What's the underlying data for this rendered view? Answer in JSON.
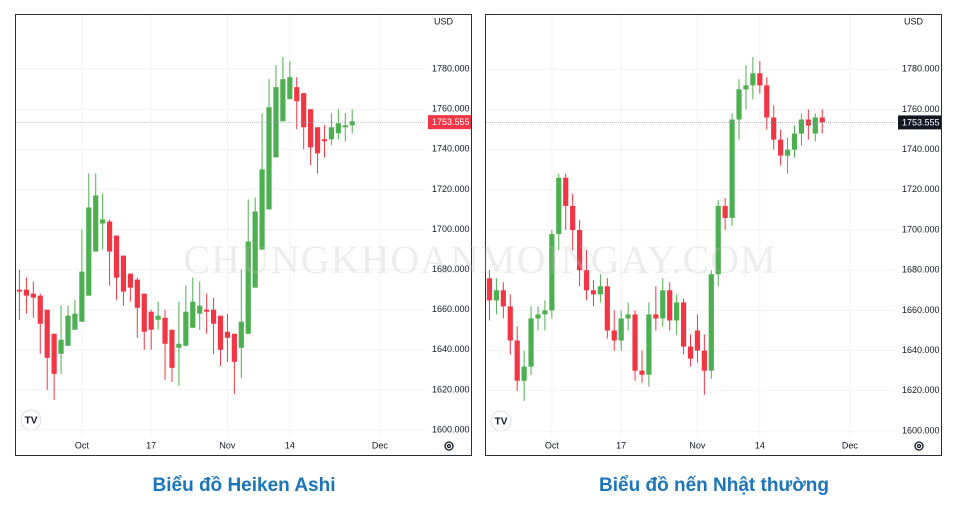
{
  "watermark": "CHUNGKHOANMOINGAY.COM",
  "chart_data": [
    {
      "type": "candlestick",
      "caption": "Biểu đồ Heiken Ashi",
      "currency": "USD",
      "up_color": "#4caf50",
      "down_color": "#f23645",
      "last_price": 1753.555,
      "last_price_color": "#f23645",
      "xlim": [
        -0.5,
        58.5
      ],
      "xticks": [
        {
          "value": 9,
          "label": "Oct"
        },
        {
          "value": 19,
          "label": "17"
        },
        {
          "value": 30,
          "label": "Nov"
        },
        {
          "value": 39,
          "label": "14"
        },
        {
          "value": 52,
          "label": "Dec"
        }
      ],
      "ylim": [
        1597,
        1807
      ],
      "yticks": [
        {
          "value": 1600,
          "label": "1600.000"
        },
        {
          "value": 1620,
          "label": "1620.000"
        },
        {
          "value": 1640,
          "label": "1640.000"
        },
        {
          "value": 1660,
          "label": "1660.000"
        },
        {
          "value": 1680,
          "label": "1680.000"
        },
        {
          "value": 1700,
          "label": "1700.000"
        },
        {
          "value": 1720,
          "label": "1720.000"
        },
        {
          "value": 1740,
          "label": "1740.000"
        },
        {
          "value": 1760,
          "label": "1760.000"
        },
        {
          "value": 1780,
          "label": "1780.000"
        }
      ],
      "open": [
        1670,
        1670,
        1668,
        1667,
        1660,
        1648,
        1638,
        1642,
        1650,
        1654,
        1667,
        1689,
        1703,
        1704,
        1697,
        1687,
        1678,
        1675,
        1668,
        1659,
        1655,
        1656,
        1650,
        1641,
        1642,
        1651,
        1658,
        1660,
        1660,
        1657,
        1649,
        1648,
        1641,
        1648,
        1671,
        1690,
        1710,
        1736,
        1754,
        1765,
        1771,
        1768,
        1760,
        1751,
        1745,
        1745,
        1748,
        1751,
        1752
      ],
      "high": [
        1680,
        1676,
        1674,
        1668,
        1660,
        1648,
        1662,
        1662,
        1665,
        1700,
        1728,
        1728,
        1718,
        1705,
        1697,
        1687,
        1678,
        1676,
        1668,
        1660,
        1664,
        1660,
        1650,
        1664,
        1672,
        1676,
        1674,
        1668,
        1666,
        1657,
        1658,
        1648,
        1680,
        1715,
        1716,
        1758,
        1775,
        1782,
        1786,
        1784,
        1776,
        1768,
        1760,
        1751,
        1752,
        1758,
        1760,
        1758,
        1760
      ],
      "low": [
        1655,
        1658,
        1656,
        1638,
        1620,
        1615,
        1628,
        1642,
        1650,
        1654,
        1667,
        1689,
        1690,
        1672,
        1665,
        1662,
        1664,
        1646,
        1640,
        1640,
        1650,
        1625,
        1624,
        1622,
        1642,
        1651,
        1650,
        1648,
        1638,
        1632,
        1634,
        1618,
        1626,
        1648,
        1671,
        1690,
        1710,
        1736,
        1754,
        1765,
        1750,
        1740,
        1732,
        1728,
        1736,
        1742,
        1745,
        1744,
        1748
      ],
      "close": [
        1669,
        1667,
        1666,
        1653,
        1636,
        1628,
        1645,
        1657,
        1658,
        1679,
        1711,
        1717,
        1705,
        1689,
        1676,
        1669,
        1671,
        1661,
        1649,
        1650,
        1657,
        1643,
        1631,
        1643,
        1659,
        1664,
        1662,
        1659,
        1653,
        1640,
        1646,
        1634,
        1654,
        1694,
        1709,
        1730,
        1761,
        1771,
        1775,
        1776,
        1764,
        1751,
        1741,
        1738,
        1744,
        1751,
        1753,
        1752,
        1754
      ]
    },
    {
      "type": "candlestick",
      "caption": "Biểu đồ nến Nhật thường",
      "currency": "USD",
      "up_color": "#4caf50",
      "down_color": "#f23645",
      "last_price": 1753.555,
      "last_price_color": "#131722",
      "xlim": [
        -0.5,
        58.5
      ],
      "xticks": [
        {
          "value": 9,
          "label": "Oct"
        },
        {
          "value": 19,
          "label": "17"
        },
        {
          "value": 30,
          "label": "Nov"
        },
        {
          "value": 39,
          "label": "14"
        },
        {
          "value": 52,
          "label": "Dec"
        }
      ],
      "ylim": [
        1597,
        1807
      ],
      "yticks": [
        {
          "value": 1600,
          "label": "1600.000"
        },
        {
          "value": 1620,
          "label": "1620.000"
        },
        {
          "value": 1640,
          "label": "1640.000"
        },
        {
          "value": 1660,
          "label": "1660.000"
        },
        {
          "value": 1680,
          "label": "1680.000"
        },
        {
          "value": 1700,
          "label": "1700.000"
        },
        {
          "value": 1720,
          "label": "1720.000"
        },
        {
          "value": 1740,
          "label": "1740.000"
        },
        {
          "value": 1760,
          "label": "1760.000"
        },
        {
          "value": 1780,
          "label": "1780.000"
        }
      ],
      "open": [
        1676,
        1665,
        1670,
        1662,
        1645,
        1625,
        1632,
        1656,
        1658,
        1660,
        1698,
        1726,
        1712,
        1700,
        1680,
        1670,
        1668,
        1672,
        1650,
        1645,
        1656,
        1658,
        1630,
        1628,
        1658,
        1656,
        1670,
        1655,
        1664,
        1642,
        1650,
        1640,
        1630,
        1678,
        1712,
        1706,
        1755,
        1770,
        1772,
        1778,
        1772,
        1756,
        1745,
        1737,
        1740,
        1748,
        1755,
        1748,
        1756
      ],
      "high": [
        1680,
        1676,
        1674,
        1668,
        1652,
        1640,
        1662,
        1662,
        1665,
        1700,
        1728,
        1728,
        1718,
        1705,
        1690,
        1675,
        1678,
        1676,
        1660,
        1660,
        1664,
        1660,
        1640,
        1664,
        1672,
        1676,
        1674,
        1668,
        1666,
        1648,
        1658,
        1648,
        1680,
        1715,
        1716,
        1758,
        1775,
        1782,
        1786,
        1784,
        1776,
        1762,
        1750,
        1746,
        1752,
        1758,
        1760,
        1758,
        1760
      ],
      "low": [
        1655,
        1658,
        1656,
        1638,
        1620,
        1615,
        1628,
        1650,
        1650,
        1656,
        1690,
        1700,
        1690,
        1672,
        1665,
        1662,
        1664,
        1646,
        1640,
        1640,
        1650,
        1625,
        1624,
        1622,
        1650,
        1652,
        1650,
        1648,
        1638,
        1632,
        1634,
        1618,
        1626,
        1672,
        1700,
        1702,
        1745,
        1760,
        1765,
        1768,
        1750,
        1740,
        1732,
        1728,
        1736,
        1742,
        1745,
        1744,
        1748
      ],
      "close": [
        1665,
        1670,
        1662,
        1645,
        1625,
        1632,
        1656,
        1658,
        1660,
        1698,
        1726,
        1712,
        1700,
        1680,
        1670,
        1668,
        1672,
        1650,
        1645,
        1656,
        1658,
        1630,
        1628,
        1658,
        1656,
        1670,
        1655,
        1664,
        1642,
        1636,
        1640,
        1630,
        1678,
        1712,
        1706,
        1755,
        1770,
        1772,
        1778,
        1772,
        1756,
        1745,
        1737,
        1740,
        1748,
        1755,
        1752,
        1756,
        1753.555
      ]
    }
  ]
}
